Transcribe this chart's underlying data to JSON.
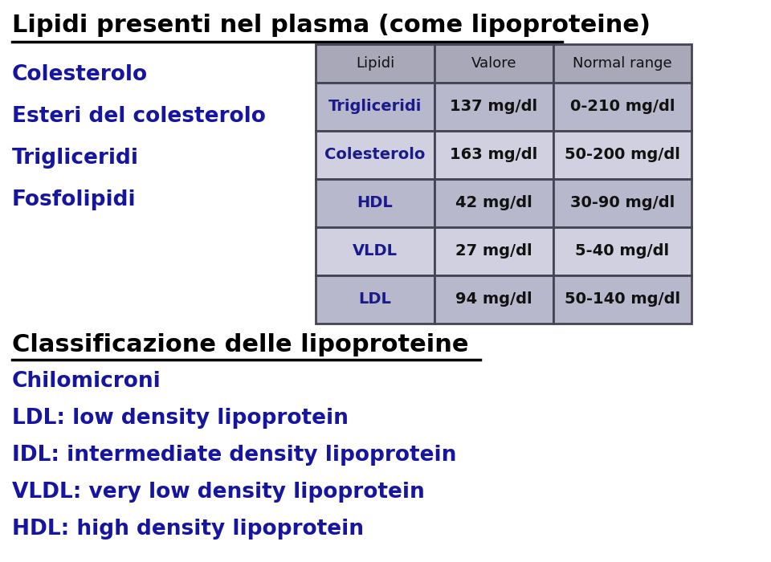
{
  "title": "Lipidi presenti nel plasma (come lipoproteine)",
  "left_items": [
    "Colesterolo",
    "Esteri del colesterolo",
    "Trigliceridi",
    "Fosfolipidi"
  ],
  "section2_title": "Classificazione delle lipoproteine",
  "bottom_items": [
    "Chilomicroni",
    "LDL: low density lipoprotein",
    "IDL: intermediate density lipoprotein",
    "VLDL: very low density lipoprotein",
    "HDL: high density lipoprotein"
  ],
  "table_header": [
    "Lipidi",
    "Valore",
    "Normal range"
  ],
  "table_rows": [
    [
      "Trigliceridi",
      "137 mg/dl",
      "0-210 mg/dl"
    ],
    [
      "Colesterolo",
      "163 mg/dl",
      "50-200 mg/dl"
    ],
    [
      "HDL",
      "42 mg/dl",
      "30-90 mg/dl"
    ],
    [
      "VLDL",
      "27 mg/dl",
      "5-40 mg/dl"
    ],
    [
      "LDL",
      "94 mg/dl",
      "50-140 mg/dl"
    ]
  ],
  "title_color": "#000000",
  "left_text_color": "#1515a0",
  "section2_color": "#000000",
  "bottom_text_color": "#1515a0",
  "table_header_bg": "#a8a8b8",
  "table_row_bg1": "#b8b8cc",
  "table_row_bg2": "#d0d0e0",
  "table_first_col_text_color": "#1a1a8a",
  "table_other_col_text_color": "#111111",
  "table_border_color": "#444455",
  "bg_color": "#ffffff"
}
